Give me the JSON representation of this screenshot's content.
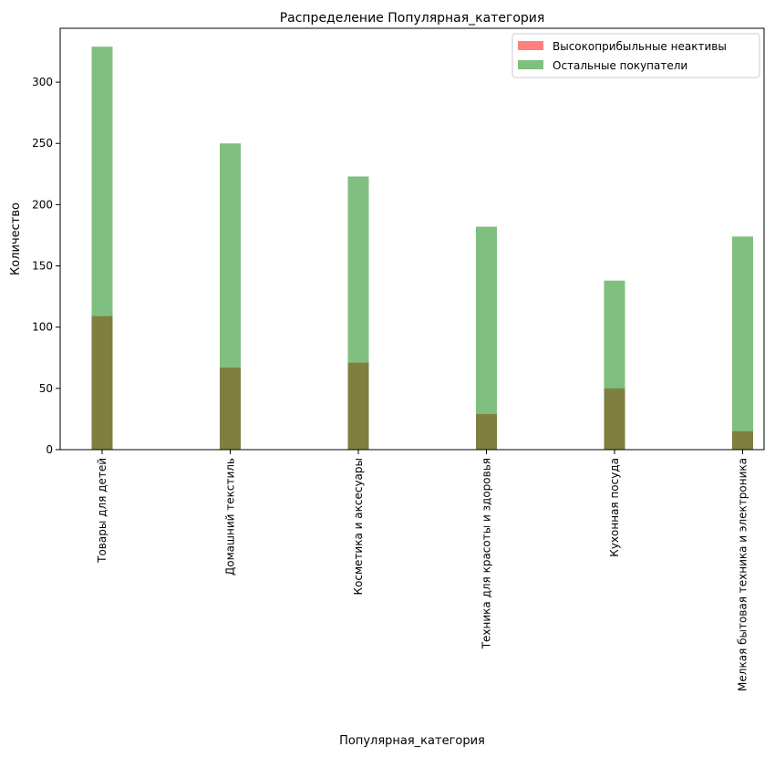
{
  "chart_data": {
    "type": "bar",
    "title": "Распределение Популярная_категория",
    "xlabel": "Популярная_категория",
    "ylabel": "Количество",
    "categories": [
      "Товары для детей",
      "Домашний текстиль",
      "Косметика и аксесуары",
      "Техника для красоты и здоровья",
      "Кухонная посуда",
      "Мелкая бытовая техника и электроника"
    ],
    "series": [
      {
        "name": "Высокоприбыльные неактивы",
        "color": "#ff0000",
        "opacity": 0.5,
        "values": [
          109,
          67,
          71,
          29,
          50,
          15
        ]
      },
      {
        "name": "Остальные покупатели",
        "color": "#008000",
        "opacity": 0.5,
        "values": [
          329,
          250,
          223,
          182,
          138,
          174
        ]
      }
    ],
    "overlay": true,
    "ylim": [
      0,
      344
    ],
    "yticks": [
      0,
      50,
      100,
      150,
      200,
      250,
      300
    ],
    "grid": false,
    "legend_position": "top-right"
  }
}
